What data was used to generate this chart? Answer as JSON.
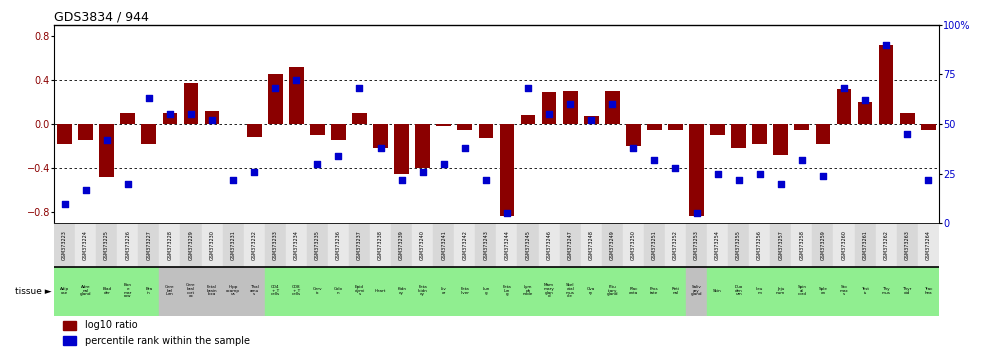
{
  "title": "GDS3834 / 944",
  "gsm_labels": [
    "GSM373223",
    "GSM373224",
    "GSM373225",
    "GSM373226",
    "GSM373227",
    "GSM373228",
    "GSM373229",
    "GSM373230",
    "GSM373231",
    "GSM373232",
    "GSM373233",
    "GSM373234",
    "GSM373235",
    "GSM373236",
    "GSM373237",
    "GSM373238",
    "GSM373239",
    "GSM373240",
    "GSM373241",
    "GSM373242",
    "GSM373243",
    "GSM373244",
    "GSM373245",
    "GSM373246",
    "GSM373247",
    "GSM373248",
    "GSM373249",
    "GSM373250",
    "GSM373251",
    "GSM373252",
    "GSM373253",
    "GSM373254",
    "GSM373255",
    "GSM373256",
    "GSM373257",
    "GSM373258",
    "GSM373259",
    "GSM373260",
    "GSM373261",
    "GSM373262",
    "GSM373263",
    "GSM373264"
  ],
  "tissue_labels": [
    "Adip\nose",
    "Adre\nnal\ngland",
    "Blad\nder",
    "Bon\ne\nmar\nrow",
    "Bra\nin",
    "Cere\nbel\nlum",
    "Cere\nbral\ncort\nex",
    "Fetal\nbrain\nloca",
    "Hipp\nocamp\nus",
    "Thal\namu\ns",
    "CD4\n+ T\ncells",
    "CD8\n+ T\ncells",
    "Cerv\nix",
    "Colo\nn",
    "Epid\ndymi\ns",
    "Heart",
    "Kidn\ney",
    "Feta\nlkidn\ney",
    "Liv\ner",
    "Feta\nliver",
    "Lun\ng",
    "Feta\nlun\ng",
    "Lym\nph\nnode",
    "Mam\nmary\nglan\nd",
    "Skel\netal\nmus\ncle",
    "Ova\nry",
    "Pitu\nitary\ngland",
    "Plac\nenta",
    "Pros\ntate",
    "Reti\nnal",
    "Saliv\nary\ngland",
    "Skin",
    "Duo\nden\num",
    "Ileu\nm",
    "Jeju\nnum",
    "Spin\nal\ncord",
    "Sple\nen",
    "Sto\nmac\ns",
    "Test\nis",
    "Thy\nmus",
    "Thyr\noid",
    "Trac\nhea"
  ],
  "log10_ratio": [
    -0.18,
    -0.14,
    -0.48,
    0.1,
    -0.18,
    0.1,
    0.37,
    0.12,
    0.0,
    -0.12,
    0.45,
    0.52,
    -0.1,
    -0.14,
    0.1,
    -0.22,
    -0.45,
    -0.4,
    -0.02,
    -0.05,
    -0.13,
    -0.83,
    0.08,
    0.29,
    0.3,
    0.07,
    0.3,
    -0.2,
    -0.05,
    -0.05,
    -0.83,
    -0.1,
    -0.22,
    -0.18,
    -0.28,
    -0.05,
    -0.18,
    0.32,
    0.2,
    0.72,
    0.1,
    -0.05
  ],
  "percentile_rank": [
    10,
    17,
    42,
    20,
    63,
    55,
    55,
    52,
    22,
    26,
    68,
    72,
    30,
    34,
    68,
    38,
    22,
    26,
    30,
    38,
    22,
    5,
    68,
    55,
    60,
    52,
    60,
    38,
    32,
    28,
    5,
    25,
    22,
    25,
    20,
    32,
    24,
    68,
    62,
    90,
    45,
    22
  ],
  "bar_color": "#8B0000",
  "dot_color": "#0000CC",
  "bg_color_even": "#D8D8D8",
  "bg_color_odd": "#E8E8E8",
  "tissue_bg_green": "#90EE90",
  "tissue_bg_gray": "#C0C0C0",
  "tissue_bg_map": [
    0,
    0,
    0,
    0,
    0,
    1,
    1,
    1,
    1,
    1,
    0,
    0,
    0,
    0,
    0,
    0,
    0,
    0,
    0,
    0,
    0,
    0,
    0,
    0,
    0,
    0,
    0,
    0,
    0,
    0,
    1,
    0,
    0,
    0,
    0,
    0,
    0,
    0,
    0,
    0,
    0,
    0
  ],
  "ylim": [
    -0.9,
    0.9
  ],
  "yticks_left": [
    -0.8,
    -0.4,
    0.0,
    0.4,
    0.8
  ],
  "yticks_right": [
    0,
    25,
    50,
    75,
    100
  ],
  "legend_red": "log10 ratio",
  "legend_blue": "percentile rank within the sample",
  "tissue_row_label": "tissue"
}
